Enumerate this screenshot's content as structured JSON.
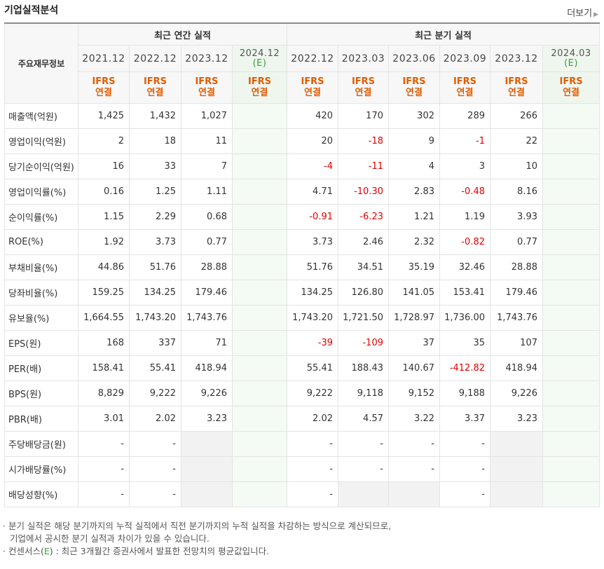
{
  "title": "기업실적분석",
  "more_label": "더보기",
  "more_arrow": "▶",
  "header": {
    "row_label": "주요재무정보",
    "annual_group": "최근 연간 실적",
    "quarter_group": "최근 분기 실적",
    "annual_periods": [
      "2021.12",
      "2022.12",
      "2023.12",
      "2024.12"
    ],
    "quarter_periods": [
      "2022.12",
      "2023.03",
      "2023.06",
      "2023.09",
      "2023.12",
      "2024.03"
    ],
    "estimate_mark": "(E)",
    "ifrs_line1": "IFRS",
    "ifrs_line2": "연결"
  },
  "rows": [
    {
      "label": "매출액(억원)",
      "annual": [
        "1,425",
        "1,432",
        "1,027",
        ""
      ],
      "quarter": [
        "420",
        "170",
        "302",
        "289",
        "266",
        ""
      ]
    },
    {
      "label": "영업이익(억원)",
      "annual": [
        "2",
        "18",
        "11",
        ""
      ],
      "quarter": [
        "20",
        "-18",
        "9",
        "-1",
        "22",
        ""
      ]
    },
    {
      "label": "당기순이익(억원)",
      "annual": [
        "16",
        "33",
        "7",
        ""
      ],
      "quarter": [
        "-4",
        "-11",
        "4",
        "3",
        "10",
        ""
      ]
    },
    {
      "label": "영업이익률(%)",
      "annual": [
        "0.16",
        "1.25",
        "1.11",
        ""
      ],
      "quarter": [
        "4.71",
        "-10.30",
        "2.83",
        "-0.48",
        "8.16",
        ""
      ]
    },
    {
      "label": "순이익률(%)",
      "annual": [
        "1.15",
        "2.29",
        "0.68",
        ""
      ],
      "quarter": [
        "-0.91",
        "-6.23",
        "1.21",
        "1.19",
        "3.93",
        ""
      ]
    },
    {
      "label": "ROE(%)",
      "annual": [
        "1.92",
        "3.73",
        "0.77",
        ""
      ],
      "quarter": [
        "3.73",
        "2.46",
        "2.32",
        "-0.82",
        "0.77",
        ""
      ]
    },
    {
      "label": "부채비율(%)",
      "annual": [
        "44.86",
        "51.76",
        "28.88",
        ""
      ],
      "quarter": [
        "51.76",
        "34.51",
        "35.19",
        "32.46",
        "28.88",
        ""
      ]
    },
    {
      "label": "당좌비율(%)",
      "annual": [
        "159.25",
        "134.25",
        "179.46",
        ""
      ],
      "quarter": [
        "134.25",
        "126.80",
        "141.05",
        "153.41",
        "179.46",
        ""
      ]
    },
    {
      "label": "유보율(%)",
      "annual": [
        "1,664.55",
        "1,743.20",
        "1,743.76",
        ""
      ],
      "quarter": [
        "1,743.20",
        "1,721.50",
        "1,728.97",
        "1,736.00",
        "1,743.76",
        ""
      ]
    },
    {
      "label": "EPS(원)",
      "annual": [
        "168",
        "337",
        "71",
        ""
      ],
      "quarter": [
        "-39",
        "-109",
        "37",
        "35",
        "107",
        ""
      ]
    },
    {
      "label": "PER(배)",
      "annual": [
        "158.41",
        "55.41",
        "418.94",
        ""
      ],
      "quarter": [
        "55.41",
        "188.43",
        "140.67",
        "-412.82",
        "418.94",
        ""
      ]
    },
    {
      "label": "BPS(원)",
      "annual": [
        "8,829",
        "9,222",
        "9,226",
        ""
      ],
      "quarter": [
        "9,222",
        "9,118",
        "9,152",
        "9,188",
        "9,226",
        ""
      ]
    },
    {
      "label": "PBR(배)",
      "annual": [
        "3.01",
        "2.02",
        "3.23",
        ""
      ],
      "quarter": [
        "2.02",
        "4.57",
        "3.22",
        "3.37",
        "3.23",
        ""
      ]
    },
    {
      "label": "주당배당금(원)",
      "annual": [
        "-",
        "-",
        "",
        ""
      ],
      "quarter": [
        "-",
        "-",
        "-",
        "-",
        "",
        ""
      ]
    },
    {
      "label": "시가배당률(%)",
      "annual": [
        "-",
        "-",
        "",
        ""
      ],
      "quarter": [
        "-",
        "-",
        "-",
        "-",
        "",
        ""
      ]
    },
    {
      "label": "배당성향(%)",
      "annual": [
        "-",
        "-",
        "",
        ""
      ],
      "quarter": [
        "-",
        "",
        "",
        "-",
        "",
        ""
      ]
    }
  ],
  "gray_cells": {
    "13": {
      "annual": [
        2
      ],
      "quarter": [
        4
      ]
    },
    "14": {
      "annual": [
        2
      ],
      "quarter": [
        4
      ]
    },
    "15": {
      "annual": [
        2
      ],
      "quarter": [
        1,
        2,
        4
      ]
    }
  },
  "notes": {
    "line1": "· 분기 실적은 해당 분기까지의 누적 실적에서 직전 분기까지의 누적 실적을 차감하는 방식으로 계산되므로,",
    "line2": "기업에서 공시한 분기 실적과 차이가 있을 수 있습니다.",
    "line3_pre": "· 컨센서스(",
    "line3_e": "E",
    "line3_post": ") : 최근 3개월간 증권사에서 발표한 전망치의 평균값입니다."
  },
  "colors": {
    "negative": "#e00000",
    "ifrs": "#e05c00",
    "estimate_bg": "#eef6ee",
    "estimate_text": "#3a9c3a"
  }
}
